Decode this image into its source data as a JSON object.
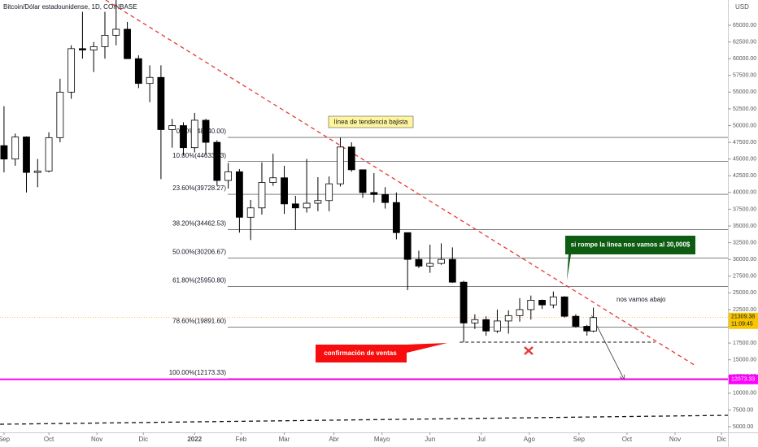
{
  "chart_data": {
    "type": "candlestick",
    "title": "Bitcoin/Dólar estadounidense, 1D, COINBASE",
    "y_unit": "USD",
    "x": [
      0,
      7,
      14,
      21,
      28,
      35,
      42,
      49,
      56,
      63,
      70,
      77,
      84,
      91,
      98,
      105,
      112,
      119,
      126,
      133,
      140,
      147,
      154,
      161,
      168,
      175,
      182,
      189,
      196,
      203,
      210,
      217,
      224,
      231,
      238,
      245,
      252,
      259,
      266,
      273,
      280,
      287,
      294,
      301,
      308,
      315,
      322,
      329,
      336,
      343,
      350,
      357,
      364,
      368
    ],
    "open": [
      47000,
      45000,
      48300,
      43000,
      43200,
      48200,
      55000,
      61500,
      61300,
      61800,
      63500,
      64400,
      60000,
      56300,
      57200,
      49400,
      50000,
      46700,
      50800,
      47500,
      41800,
      43100,
      36300,
      37700,
      41500,
      42200,
      38300,
      37700,
      38400,
      38800,
      41300,
      46800,
      43400,
      40000,
      39700,
      38500,
      34000,
      30000,
      29000,
      29400,
      30000,
      26600,
      20500,
      21000,
      19300,
      20800,
      21600,
      22500,
      23900,
      23200,
      24400,
      21500,
      20000,
      19300
    ],
    "high": [
      52900,
      48800,
      48400,
      45000,
      49000,
      57000,
      62000,
      67000,
      62500,
      67000,
      69000,
      65500,
      60500,
      59000,
      59000,
      51000,
      50500,
      51900,
      51000,
      47800,
      44400,
      43500,
      38900,
      44500,
      45800,
      44000,
      39500,
      45000,
      42300,
      42400,
      48200,
      47500,
      43400,
      42900,
      40800,
      40000,
      34000,
      31300,
      32200,
      32400,
      31800,
      26800,
      21800,
      21500,
      22500,
      22400,
      24200,
      24600,
      24000,
      25200,
      24500,
      21800,
      20200,
      22800
    ],
    "low": [
      43000,
      44000,
      40000,
      40800,
      43000,
      47500,
      54000,
      60000,
      58000,
      60000,
      62000,
      60000,
      55600,
      53500,
      42000,
      46700,
      45500,
      46000,
      45700,
      41000,
      40600,
      34000,
      32900,
      36700,
      41000,
      36800,
      34400,
      37000,
      37200,
      37200,
      40900,
      43100,
      39200,
      38500,
      37600,
      33000,
      25400,
      28700,
      28000,
      29200,
      26500,
      17600,
      19600,
      18600,
      19000,
      18900,
      20700,
      21000,
      22600,
      22700,
      21300,
      19800,
      18600,
      19100
    ],
    "close": [
      45000,
      48300,
      43000,
      43200,
      48200,
      55000,
      61500,
      61300,
      61800,
      63500,
      64400,
      60000,
      56300,
      57200,
      49400,
      50000,
      46700,
      50800,
      47500,
      41800,
      43100,
      36300,
      37700,
      41500,
      42200,
      38300,
      37700,
      38400,
      38800,
      41300,
      46800,
      43400,
      40000,
      39700,
      38500,
      34000,
      30000,
      29000,
      29400,
      30000,
      26600,
      20500,
      21000,
      19300,
      20800,
      21600,
      22500,
      23900,
      23200,
      24400,
      21500,
      20000,
      19300,
      21309.38
    ],
    "xlim": [
      -2.5,
      452
    ],
    "xticks": [
      {
        "value": 0,
        "label": "Sep"
      },
      {
        "value": 28,
        "label": "Oct"
      },
      {
        "value": 58,
        "label": "Nov"
      },
      {
        "value": 87,
        "label": "Dic"
      },
      {
        "value": 119,
        "label": "2022"
      },
      {
        "value": 148,
        "label": "Feb"
      },
      {
        "value": 175,
        "label": "Mar"
      },
      {
        "value": 206,
        "label": "Abr"
      },
      {
        "value": 236,
        "label": "Mayo"
      },
      {
        "value": 266,
        "label": "Jun"
      },
      {
        "value": 298,
        "label": "Jul"
      },
      {
        "value": 328,
        "label": "Ago"
      },
      {
        "value": 359,
        "label": "Sep"
      },
      {
        "value": 389,
        "label": "Oct"
      },
      {
        "value": 419,
        "label": "Nov"
      },
      {
        "value": 448,
        "label": "Dic"
      }
    ],
    "ylim": [
      4150,
      68770
    ],
    "yticks": [
      {
        "value": 5000,
        "label": "5000.00"
      },
      {
        "value": 7500,
        "label": "7500.00"
      },
      {
        "value": 10000,
        "label": "10000.00"
      },
      {
        "value": 12500,
        "label": "12500.00"
      },
      {
        "value": 15000,
        "label": "15000.00"
      },
      {
        "value": 17500,
        "label": "17500.00"
      },
      {
        "value": 20000,
        "label": "20000.00"
      },
      {
        "value": 22500,
        "label": "22500.00"
      },
      {
        "value": 25000,
        "label": "25000.00"
      },
      {
        "value": 27500,
        "label": "27500.00"
      },
      {
        "value": 30000,
        "label": "30000.00"
      },
      {
        "value": 32500,
        "label": "32500.00"
      },
      {
        "value": 35000,
        "label": "35000.00"
      },
      {
        "value": 37500,
        "label": "37500.00"
      },
      {
        "value": 40000,
        "label": "40000.00"
      },
      {
        "value": 42500,
        "label": "42500.00"
      },
      {
        "value": 45000,
        "label": "45000.00"
      },
      {
        "value": 47500,
        "label": "47500.00"
      },
      {
        "value": 50000,
        "label": "50000.00"
      },
      {
        "value": 52500,
        "label": "52500.00"
      },
      {
        "value": 55000,
        "label": "55000.00"
      },
      {
        "value": 57500,
        "label": "57500.00"
      },
      {
        "value": 60000,
        "label": "60000.00"
      },
      {
        "value": 62500,
        "label": "62500.00"
      },
      {
        "value": 65000,
        "label": "65000.00"
      }
    ],
    "fib_levels": [
      {
        "label": "0.00%(48240.00)",
        "value": 48240
      },
      {
        "label": "10.00%(44633.33)",
        "value": 44633.33
      },
      {
        "label": "23.60%(39728.27)",
        "value": 39728.27
      },
      {
        "label": "38.20%(34462.53)",
        "value": 34462.53
      },
      {
        "label": "50.00%(30206.67)",
        "value": 30206.67
      },
      {
        "label": "61.80%(25950.80)",
        "value": 25950.8
      },
      {
        "label": "78.60%(19891.60)",
        "value": 19891.6
      },
      {
        "label": "100.00%(12173.33)",
        "value": 12173.33
      }
    ],
    "last_price": 21309.38,
    "countdown": "11:09:45",
    "support_level": 12073.33,
    "support_color": "#ff00ff",
    "trendline": {
      "color": "#e53935",
      "x": [
        63.5,
        431
      ],
      "y": [
        68770,
        14230
      ]
    },
    "long_line": {
      "x": [
        -2.5,
        452
      ],
      "y": [
        5364,
        6700
      ]
    },
    "neckline": {
      "x": [
        284.5,
        406.5
      ],
      "y": [
        17630,
        17630
      ]
    },
    "arrow": {
      "x": [
        366.9,
        387.2
      ],
      "y": [
        21640,
        12040
      ]
    },
    "annotations": {
      "trend": "línea de tendencia bajista",
      "break": "si rompe la linea nos vamos al 30,000$",
      "down": "nos vamos abajo",
      "confirm": "confirmación de ventas"
    }
  }
}
